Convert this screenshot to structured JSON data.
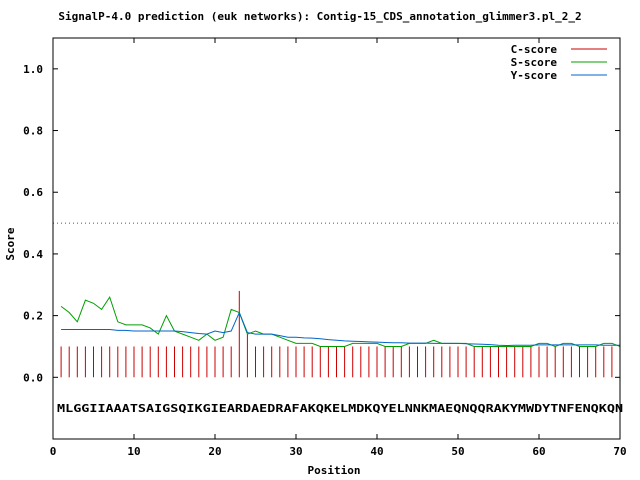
{
  "chart_data": {
    "type": "line",
    "title": "SignalP-4.0 prediction (euk networks): Contig-15_CDS_annotation_glimmer3.pl_2_2",
    "xlabel": "Position",
    "ylabel": "Score",
    "xlim": [
      0,
      70
    ],
    "ylim": [
      -0.2,
      1.1
    ],
    "xticks": [
      0,
      10,
      20,
      30,
      40,
      50,
      60,
      70
    ],
    "xtick_labels": [
      "0",
      "10",
      "20",
      "30",
      "40",
      "50",
      "60",
      "70"
    ],
    "yticks": [
      0.0,
      0.2,
      0.4,
      0.6,
      0.8,
      1.0
    ],
    "ytick_labels": [
      "0.0",
      "0.2",
      "0.4",
      "0.6",
      "0.8",
      "1.0"
    ],
    "legend_position": "top-right",
    "threshold": 0.5,
    "sequence": "MLGGIIAAATSAIGSQIKGIEARDAEDRAFAKQKELMDKQYELNNKMAEQNQQRAKYMWDYTNFENQKQN",
    "series": [
      {
        "name": "C-score",
        "style": "impulses",
        "color": "#cc0000",
        "x": [
          1,
          2,
          3,
          4,
          5,
          6,
          7,
          8,
          9,
          10,
          11,
          12,
          13,
          14,
          15,
          16,
          17,
          18,
          19,
          20,
          21,
          22,
          23,
          24,
          25,
          26,
          27,
          28,
          29,
          30,
          31,
          32,
          33,
          34,
          35,
          36,
          37,
          38,
          39,
          40,
          41,
          42,
          43,
          44,
          45,
          46,
          47,
          48,
          49,
          50,
          51,
          52,
          53,
          54,
          55,
          56,
          57,
          58,
          59,
          60,
          61,
          62,
          63,
          64,
          65,
          66,
          67,
          68,
          69
        ],
        "values": [
          0.1,
          0.1,
          0.1,
          0.1,
          0.1,
          0.1,
          0.1,
          0.1,
          0.1,
          0.1,
          0.1,
          0.1,
          0.1,
          0.1,
          0.1,
          0.1,
          0.1,
          0.1,
          0.1,
          0.1,
          0.1,
          0.1,
          0.28,
          0.14,
          0.1,
          0.1,
          0.1,
          0.1,
          0.1,
          0.1,
          0.1,
          0.1,
          0.1,
          0.1,
          0.1,
          0.1,
          0.1,
          0.1,
          0.1,
          0.1,
          0.1,
          0.1,
          0.1,
          0.1,
          0.1,
          0.1,
          0.1,
          0.1,
          0.1,
          0.1,
          0.1,
          0.1,
          0.1,
          0.1,
          0.1,
          0.1,
          0.1,
          0.1,
          0.1,
          0.1,
          0.1,
          0.1,
          0.1,
          0.1,
          0.1,
          0.1,
          0.1,
          0.1,
          0.1
        ]
      },
      {
        "name": "S-score",
        "style": "line",
        "color": "#00a000",
        "x": [
          1,
          2,
          3,
          4,
          5,
          6,
          7,
          8,
          9,
          10,
          11,
          12,
          13,
          14,
          15,
          16,
          17,
          18,
          19,
          20,
          21,
          22,
          23,
          24,
          25,
          26,
          27,
          28,
          29,
          30,
          31,
          32,
          33,
          34,
          35,
          36,
          37,
          38,
          39,
          40,
          41,
          42,
          43,
          44,
          45,
          46,
          47,
          48,
          49,
          50,
          51,
          52,
          53,
          54,
          55,
          56,
          57,
          58,
          59,
          60,
          61,
          62,
          63,
          64,
          65,
          66,
          67,
          68,
          69,
          70
        ],
        "values": [
          0.23,
          0.21,
          0.18,
          0.25,
          0.24,
          0.22,
          0.26,
          0.18,
          0.17,
          0.17,
          0.17,
          0.16,
          0.14,
          0.2,
          0.15,
          0.14,
          0.13,
          0.12,
          0.14,
          0.12,
          0.13,
          0.22,
          0.21,
          0.14,
          0.15,
          0.14,
          0.14,
          0.13,
          0.12,
          0.11,
          0.11,
          0.11,
          0.1,
          0.1,
          0.1,
          0.1,
          0.11,
          0.11,
          0.11,
          0.11,
          0.1,
          0.1,
          0.1,
          0.11,
          0.11,
          0.11,
          0.12,
          0.11,
          0.11,
          0.11,
          0.11,
          0.1,
          0.1,
          0.1,
          0.1,
          0.1,
          0.1,
          0.1,
          0.1,
          0.11,
          0.11,
          0.1,
          0.11,
          0.11,
          0.1,
          0.1,
          0.1,
          0.11,
          0.11,
          0.1
        ]
      },
      {
        "name": "Y-score",
        "style": "line",
        "color": "#0066cc",
        "x": [
          1,
          2,
          3,
          4,
          5,
          6,
          7,
          8,
          9,
          10,
          11,
          12,
          13,
          14,
          15,
          16,
          17,
          18,
          19,
          20,
          21,
          22,
          23,
          24,
          25,
          26,
          27,
          28,
          29,
          30,
          31,
          32,
          33,
          34,
          35,
          36,
          37,
          38,
          39,
          40,
          41,
          42,
          43,
          44,
          45,
          46,
          47,
          48,
          49,
          50,
          51,
          52,
          53,
          54,
          55,
          56,
          57,
          58,
          59,
          60,
          61,
          62,
          63,
          64,
          65,
          66,
          67,
          68,
          69,
          70
        ],
        "values": [
          0.155,
          0.155,
          0.155,
          0.155,
          0.155,
          0.155,
          0.155,
          0.152,
          0.152,
          0.15,
          0.15,
          0.15,
          0.15,
          0.15,
          0.15,
          0.148,
          0.145,
          0.142,
          0.14,
          0.15,
          0.145,
          0.15,
          0.21,
          0.145,
          0.14,
          0.14,
          0.14,
          0.135,
          0.13,
          0.13,
          0.128,
          0.127,
          0.125,
          0.122,
          0.12,
          0.118,
          0.117,
          0.116,
          0.115,
          0.114,
          0.113,
          0.112,
          0.112,
          0.111,
          0.111,
          0.111,
          0.11,
          0.11,
          0.11,
          0.11,
          0.109,
          0.108,
          0.107,
          0.106,
          0.104,
          0.103,
          0.104,
          0.104,
          0.104,
          0.105,
          0.105,
          0.105,
          0.105,
          0.105,
          0.105,
          0.105,
          0.105,
          0.104,
          0.104,
          0.104
        ]
      }
    ]
  }
}
